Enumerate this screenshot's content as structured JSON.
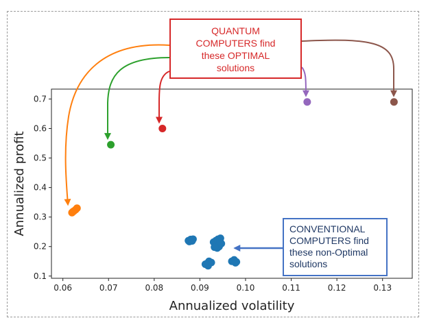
{
  "chart_data": {
    "type": "scatter",
    "xlabel": "Annualized volatility",
    "ylabel": "Annualized profit",
    "xlim": [
      0.0575,
      0.1365
    ],
    "ylim": [
      0.0925,
      0.7335
    ],
    "xticks": [
      "0.06",
      "0.07",
      "0.08",
      "0.09",
      "0.10",
      "0.11",
      "0.12",
      "0.13"
    ],
    "yticks": [
      "0.1",
      "0.2",
      "0.3",
      "0.4",
      "0.5",
      "0.6",
      "0.7"
    ],
    "series": [
      {
        "name": "conventional",
        "color": "#1f77b4",
        "points": [
          [
            0.0875,
            0.22
          ],
          [
            0.088,
            0.224
          ],
          [
            0.0885,
            0.225
          ],
          [
            0.0877,
            0.217
          ],
          [
            0.0883,
            0.219
          ],
          [
            0.0915,
            0.142
          ],
          [
            0.092,
            0.15
          ],
          [
            0.0918,
            0.135
          ],
          [
            0.0925,
            0.146
          ],
          [
            0.0912,
            0.14
          ],
          [
            0.093,
            0.215
          ],
          [
            0.0935,
            0.22
          ],
          [
            0.094,
            0.225
          ],
          [
            0.0945,
            0.228
          ],
          [
            0.0938,
            0.195
          ],
          [
            0.0942,
            0.2
          ],
          [
            0.0935,
            0.205
          ],
          [
            0.0947,
            0.21
          ],
          [
            0.0932,
            0.198
          ],
          [
            0.0944,
            0.218
          ],
          [
            0.097,
            0.15
          ],
          [
            0.0975,
            0.155
          ],
          [
            0.098,
            0.148
          ],
          [
            0.0978,
            0.145
          ]
        ]
      },
      {
        "name": "orange",
        "color": "#ff7f0e",
        "points": [
          [
            0.062,
            0.315
          ],
          [
            0.0624,
            0.32
          ],
          [
            0.0628,
            0.325
          ],
          [
            0.0631,
            0.33
          ],
          [
            0.0622,
            0.318
          ]
        ]
      },
      {
        "name": "green",
        "color": "#2ca02c",
        "points": [
          [
            0.0705,
            0.545
          ]
        ]
      },
      {
        "name": "red",
        "color": "#d62728",
        "points": [
          [
            0.0818,
            0.6
          ]
        ]
      },
      {
        "name": "purple",
        "color": "#9467bd",
        "points": [
          [
            0.1135,
            0.69
          ]
        ]
      },
      {
        "name": "brown",
        "color": "#8c564b",
        "points": [
          [
            0.1325,
            0.69
          ]
        ]
      }
    ],
    "annotations": {
      "quantum": {
        "lines": [
          "QUANTUM",
          "COMPUTERS find",
          "these OPTIMAL",
          "solutions"
        ],
        "color": "#d62728",
        "targets": [
          "orange",
          "green",
          "red",
          "purple",
          "brown"
        ]
      },
      "conventional": {
        "lines": [
          "CONVENTIONAL",
          "COMPUTERS find",
          "these non-Optimal",
          "solutions"
        ],
        "border_color": "#4472c4",
        "text_color": "#1f3864",
        "target": "conventional"
      }
    }
  }
}
